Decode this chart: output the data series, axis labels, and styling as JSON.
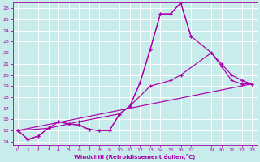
{
  "xlabel": "Windchill (Refroidissement éolien,°C)",
  "background_color": "#c8ecec",
  "grid_color": "#b0dede",
  "line_color": "#aa00aa",
  "xlim": [
    -0.5,
    23.5
  ],
  "ylim": [
    13.7,
    26.5
  ],
  "yticks": [
    14,
    15,
    16,
    17,
    18,
    19,
    20,
    21,
    22,
    23,
    24,
    25,
    26
  ],
  "xticks": [
    0,
    1,
    2,
    3,
    4,
    5,
    6,
    7,
    8,
    9,
    10,
    11,
    12,
    13,
    14,
    15,
    16,
    17,
    19,
    20,
    21,
    22,
    23
  ],
  "lines": [
    {
      "x": [
        0,
        1,
        2,
        3,
        4,
        5,
        6,
        7,
        8,
        9,
        10,
        11,
        12,
        13,
        14,
        15,
        16,
        17
      ],
      "y": [
        15.0,
        14.2,
        14.5,
        15.2,
        15.8,
        15.6,
        15.5,
        15.1,
        15.0,
        15.0,
        16.5,
        17.2,
        19.3,
        22.3,
        25.5,
        25.5,
        26.5,
        23.5
      ]
    },
    {
      "x": [
        0,
        1,
        2,
        3,
        4,
        5,
        6,
        7,
        8,
        9,
        10,
        11,
        12,
        13,
        14,
        15,
        16,
        17,
        19,
        20,
        21,
        22,
        23
      ],
      "y": [
        15.0,
        14.2,
        14.5,
        15.2,
        15.8,
        15.6,
        15.5,
        15.1,
        15.0,
        15.0,
        16.5,
        17.2,
        19.3,
        22.3,
        25.5,
        25.5,
        26.5,
        23.5,
        22.0,
        20.8,
        19.5,
        19.2,
        19.2
      ]
    },
    {
      "x": [
        0,
        3,
        5,
        6,
        10,
        11,
        13,
        15,
        16,
        19,
        20,
        21,
        22,
        23
      ],
      "y": [
        15.0,
        15.2,
        15.6,
        15.8,
        16.5,
        17.2,
        19.0,
        19.5,
        20.0,
        22.0,
        21.0,
        20.0,
        19.5,
        19.2
      ]
    },
    {
      "x": [
        0,
        23
      ],
      "y": [
        15.0,
        19.2
      ]
    }
  ]
}
